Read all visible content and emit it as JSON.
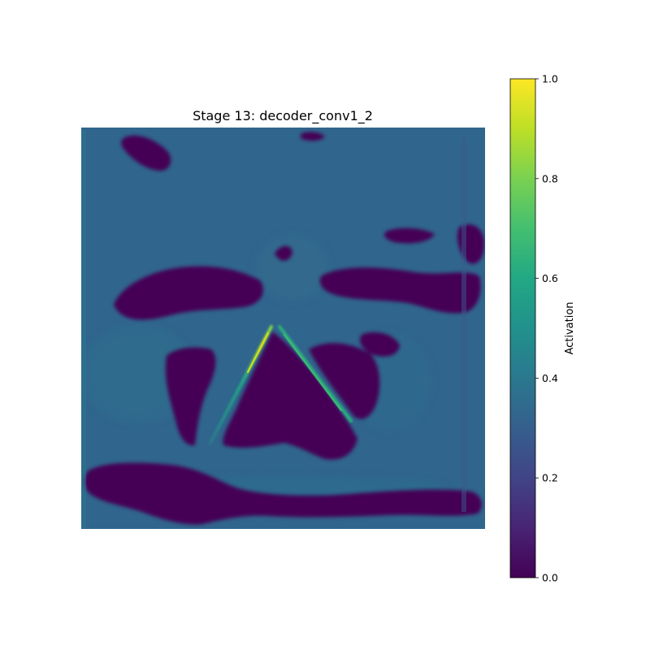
{
  "chart_data": {
    "type": "heatmap",
    "title": "Stage 13: decoder_conv1_2",
    "colormap": "viridis",
    "colorbar": {
      "label": "Activation",
      "range": [
        0.0,
        1.0
      ],
      "ticks": [
        {
          "value": 0.0,
          "label": "0.0"
        },
        {
          "value": 0.2,
          "label": "0.2"
        },
        {
          "value": 0.4,
          "label": "0.4"
        },
        {
          "value": 0.6,
          "label": "0.6"
        },
        {
          "value": 0.8,
          "label": "0.8"
        },
        {
          "value": 1.0,
          "label": "1.0"
        }
      ]
    },
    "axes_visible": false,
    "background_activation": 0.27,
    "colors": {
      "low": "#440154",
      "mid": "#21918c",
      "high": "#fde725"
    }
  }
}
